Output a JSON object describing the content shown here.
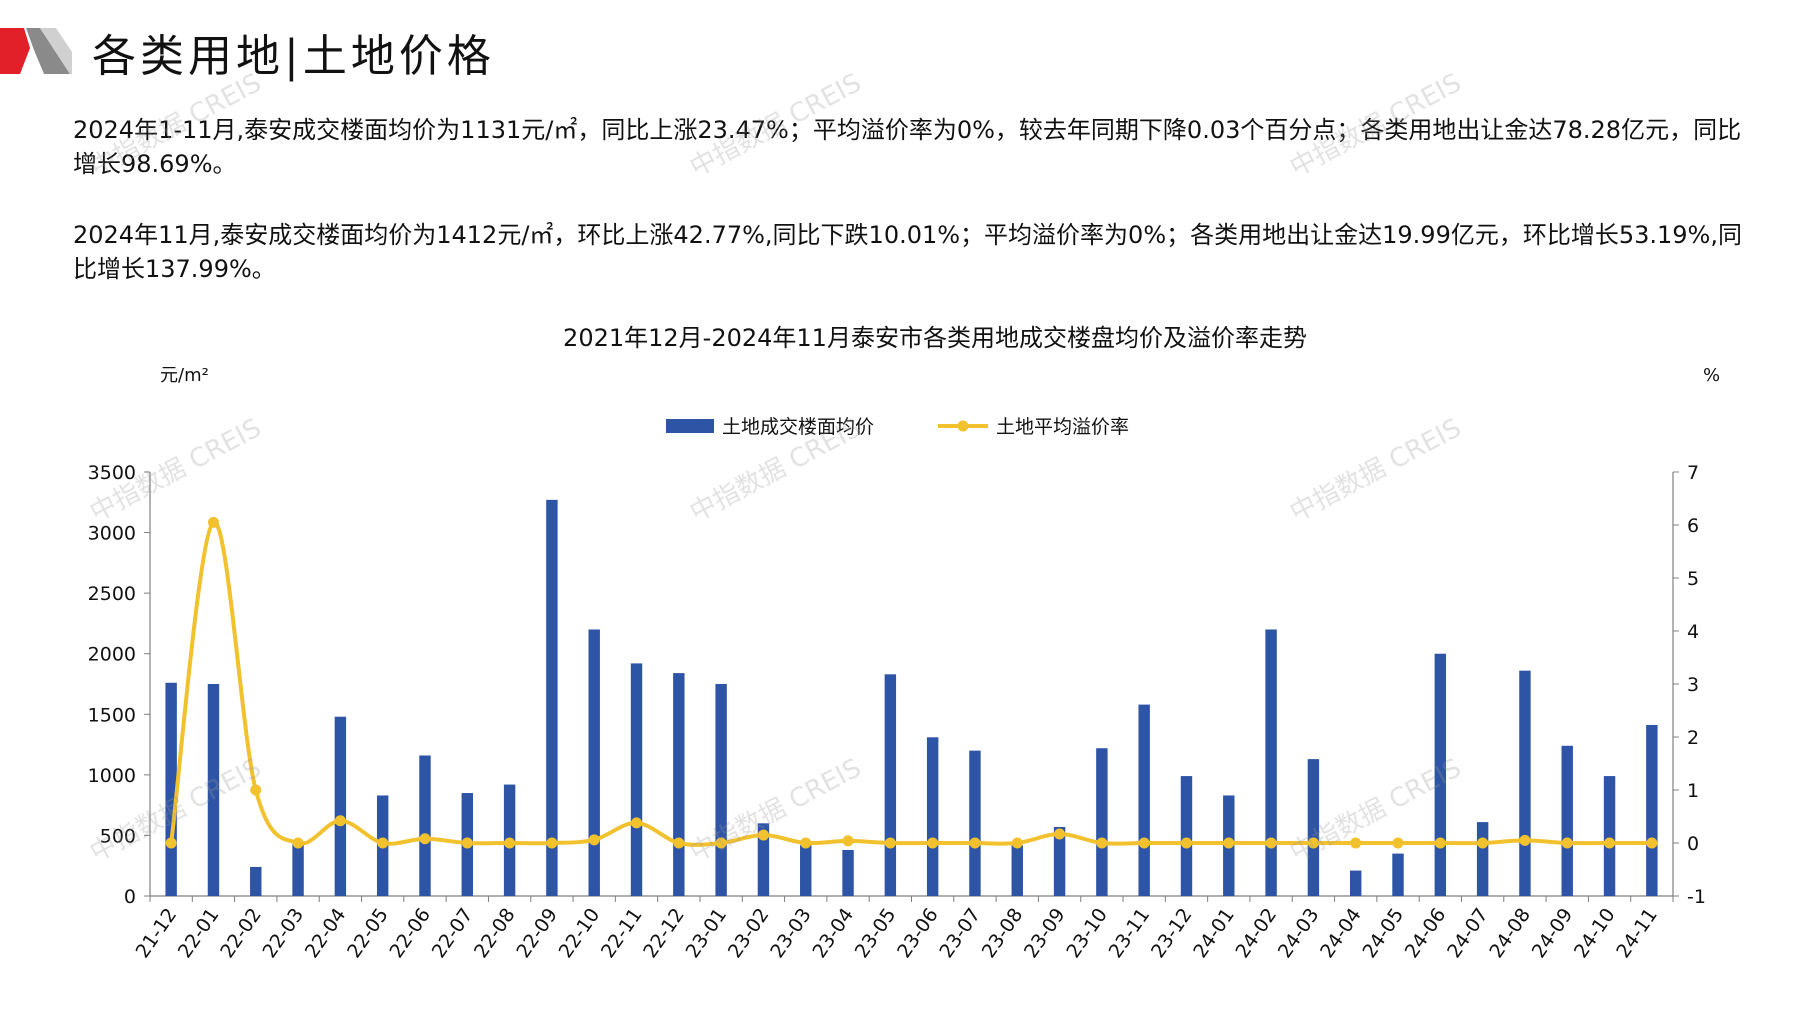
{
  "header": {
    "title": "各类用地|土地价格"
  },
  "summary": {
    "paragraph1": "2024年1-11月,泰安成交楼面均价为1131元/㎡，同比上涨23.47%；平均溢价率为0%，较去年同期下降0.03个百分点；各类用地出让金达78.28亿元，同比增长98.69%。",
    "paragraph2": "2024年11月,泰安成交楼面均价为1412元/㎡，环比上涨42.77%,同比下跌10.01%；平均溢价率为0%；各类用地出让金达19.99亿元，环比增长53.19%,同比增长137.99%。"
  },
  "watermark": "中指数据 CREIS",
  "colors": {
    "bar": "#2E55A5",
    "line": "#F2C12E",
    "logo_red": "#E2202A",
    "logo_gray": "#7F7F7F"
  },
  "chart_data": {
    "type": "bar",
    "title": "2021年12月-2024年11月泰安市各类用地成交楼盘均价及溢价率走势",
    "y_left_unit": "元/m²",
    "y_right_unit": "%",
    "ylim_left": [
      0,
      3500
    ],
    "yticks_left": [
      "0",
      "500",
      "1000",
      "1500",
      "2000",
      "2500",
      "3000",
      "3500"
    ],
    "ylim_right": [
      -1,
      7
    ],
    "yticks_right": [
      "-1",
      "0",
      "1",
      "2",
      "3",
      "4",
      "5",
      "6",
      "7"
    ],
    "legend_position": "top-center",
    "categories": [
      "21-12",
      "22-01",
      "22-02",
      "22-03",
      "22-04",
      "22-05",
      "22-06",
      "22-07",
      "22-08",
      "22-09",
      "22-10",
      "22-11",
      "22-12",
      "23-01",
      "23-02",
      "23-03",
      "23-04",
      "23-05",
      "23-06",
      "23-07",
      "23-08",
      "23-09",
      "23-10",
      "23-11",
      "23-12",
      "24-01",
      "24-02",
      "24-03",
      "24-04",
      "24-05",
      "24-06",
      "24-07",
      "24-08",
      "24-09",
      "24-10",
      "24-11"
    ],
    "series": [
      {
        "name": "土地成交楼面均价",
        "type": "bar",
        "axis": "left",
        "values": [
          1760,
          1750,
          240,
          430,
          1480,
          830,
          1160,
          850,
          920,
          3270,
          2200,
          1920,
          1840,
          1750,
          600,
          420,
          380,
          1830,
          1310,
          1200,
          420,
          570,
          1220,
          1580,
          990,
          830,
          2200,
          1130,
          210,
          350,
          2000,
          610,
          1860,
          1240,
          990,
          1412
        ]
      },
      {
        "name": "土地平均溢价率",
        "type": "line",
        "axis": "right",
        "values": [
          0,
          6.05,
          1.0,
          0,
          0.42,
          0,
          0.08,
          0,
          0,
          0,
          0.06,
          0.38,
          0,
          0,
          0.15,
          0,
          0.04,
          0,
          0,
          0,
          0,
          0.17,
          0,
          0,
          0,
          0,
          0,
          0,
          0,
          0,
          0,
          0,
          0.05,
          0,
          0,
          0
        ]
      }
    ]
  }
}
